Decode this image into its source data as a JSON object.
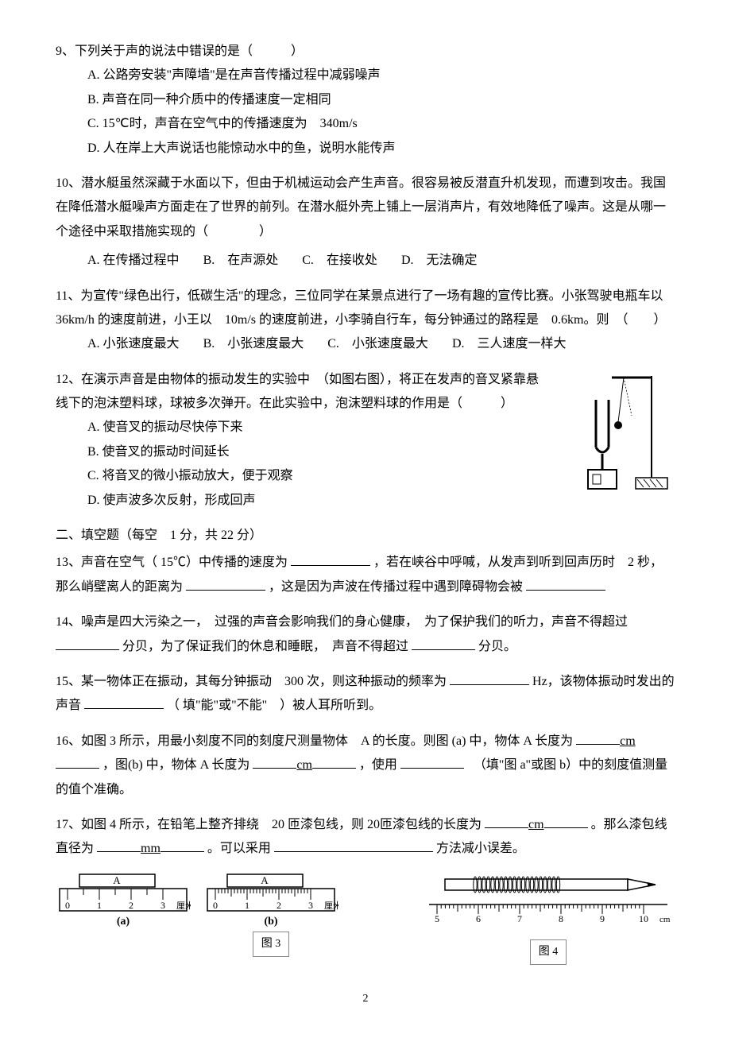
{
  "q9": {
    "stem": "9、下列关于声的说法中错误的是（　　　）",
    "A": "A. 公路旁安装\"声障墙\"是在声音传播过程中减弱噪声",
    "B": "B. 声音在同一种介质中的传播速度一定相同",
    "C": "C. 15℃时，声音在空气中的传播速度为　340m/s",
    "D": "D. 人在岸上大声说话也能惊动水中的鱼，说明水能传声"
  },
  "q10": {
    "stem": "10、潜水艇虽然深藏于水面以下，但由于机械运动会产生声音。很容易被反潜直升机发现，而遭到攻击。我国在降低潜水艇噪声方面走在了世界的前列。在潜水艇外壳上铺上一层消声片，有效地降低了噪声。这是从哪一个途径中采取措施实现的（　　　　）",
    "A": "A. 在传播过程中",
    "B": "B.　在声源处",
    "C": "C.　在接收处",
    "D": "D.　无法确定"
  },
  "q11": {
    "stem": "11、为宣传\"绿色出行，低碳生活\"的理念，三位同学在某景点进行了一场有趣的宣传比赛。小张驾驶电瓶车以　36km/h 的速度前进，小王以　10m/s 的速度前进，小李骑自行车，每分钟通过的路程是　0.6km。则　（　　）",
    "A": "A. 小张速度最大",
    "B": "B.　小张速度最大",
    "C": "C.　小张速度最大",
    "D": "D.　三人速度一样大"
  },
  "q12": {
    "stem1": "12、在演示声音是由物体的振动发生的实验中　（如图右图），将正在发声的音叉紧靠悬线下的泡沫塑料球，球被多次弹开。在此实验中，泡沫塑料球的作用是（　　　）",
    "A": "A.  使音叉的振动尽快停下来",
    "B": "B.  使音叉的振动时间延长",
    "C": "C.  将音叉的微小振动放大，便于观察",
    "D": "D.  使声波多次反射，形成回声"
  },
  "section2": "二、填空题（每空　1 分，共 22 分）",
  "q13": {
    "p1": "13、声音在空气（ 15℃）中传播的速度为 ",
    "p2": "，若在峡谷中呼喊，从发声到听到回声历时　2 秒，那么峭壁离人的距离为 ",
    "p3": "，这是因为声波在传播过程中遇到障碍物会被 "
  },
  "q14": {
    "p1": "14、噪声是四大污染之一，　过强的声音会影响我们的身心健康，　为了保护我们的听力，声音不得超过 ",
    "p2": "分贝，为了保证我们的休息和睡眠，　声音不得超过 ",
    "p3": "分贝。"
  },
  "q15": {
    "p1": "15、某一物体正在振动，其每分钟振动　300 次，则这种振动的频率为 ",
    "p2": "Hz，该物体振动时发出的声音 ",
    "p3": "（ 填\"能\"或\"不能\"　）被人耳所听到。"
  },
  "q16": {
    "p1": "16、如图 3 所示，用最小刻度不同的刻度尺测量物体　A 的长度。则图 (a) 中，物体 A 长度为",
    "cm1": "cm",
    "p2": "，图(b) 中，物体 A 长度为",
    "cm2": "cm",
    "p3": "，使用 ",
    "p4": "　（填\"图 a\"或图 b）中的刻度值测量的值个准确。"
  },
  "q17": {
    "p1": "17、如图 4 所示，在铅笔上整齐排绕　20 匝漆包线，则 20匝漆包线的长度为 ",
    "cm": "cm",
    "p2": "。那么漆包线直径为 ",
    "mm": "mm",
    "p3": "。可以采用 ",
    "p4": " 方法减小误差。"
  },
  "figs": {
    "ruler_a": {
      "label_a": "A",
      "ticks": [
        "0",
        "1",
        "2",
        "3"
      ],
      "unit": "厘米",
      "sub": "(a)"
    },
    "ruler_b": {
      "label_a": "A",
      "ticks": [
        "0",
        "1",
        "2",
        "3"
      ],
      "unit": "厘米",
      "sub": "(b)"
    },
    "cap3": "图 3",
    "pencil_ruler": {
      "ticks": [
        "5",
        "6",
        "7",
        "8",
        "9",
        "10"
      ],
      "unit": "cm"
    },
    "cap4": "图 4"
  },
  "page": "2"
}
